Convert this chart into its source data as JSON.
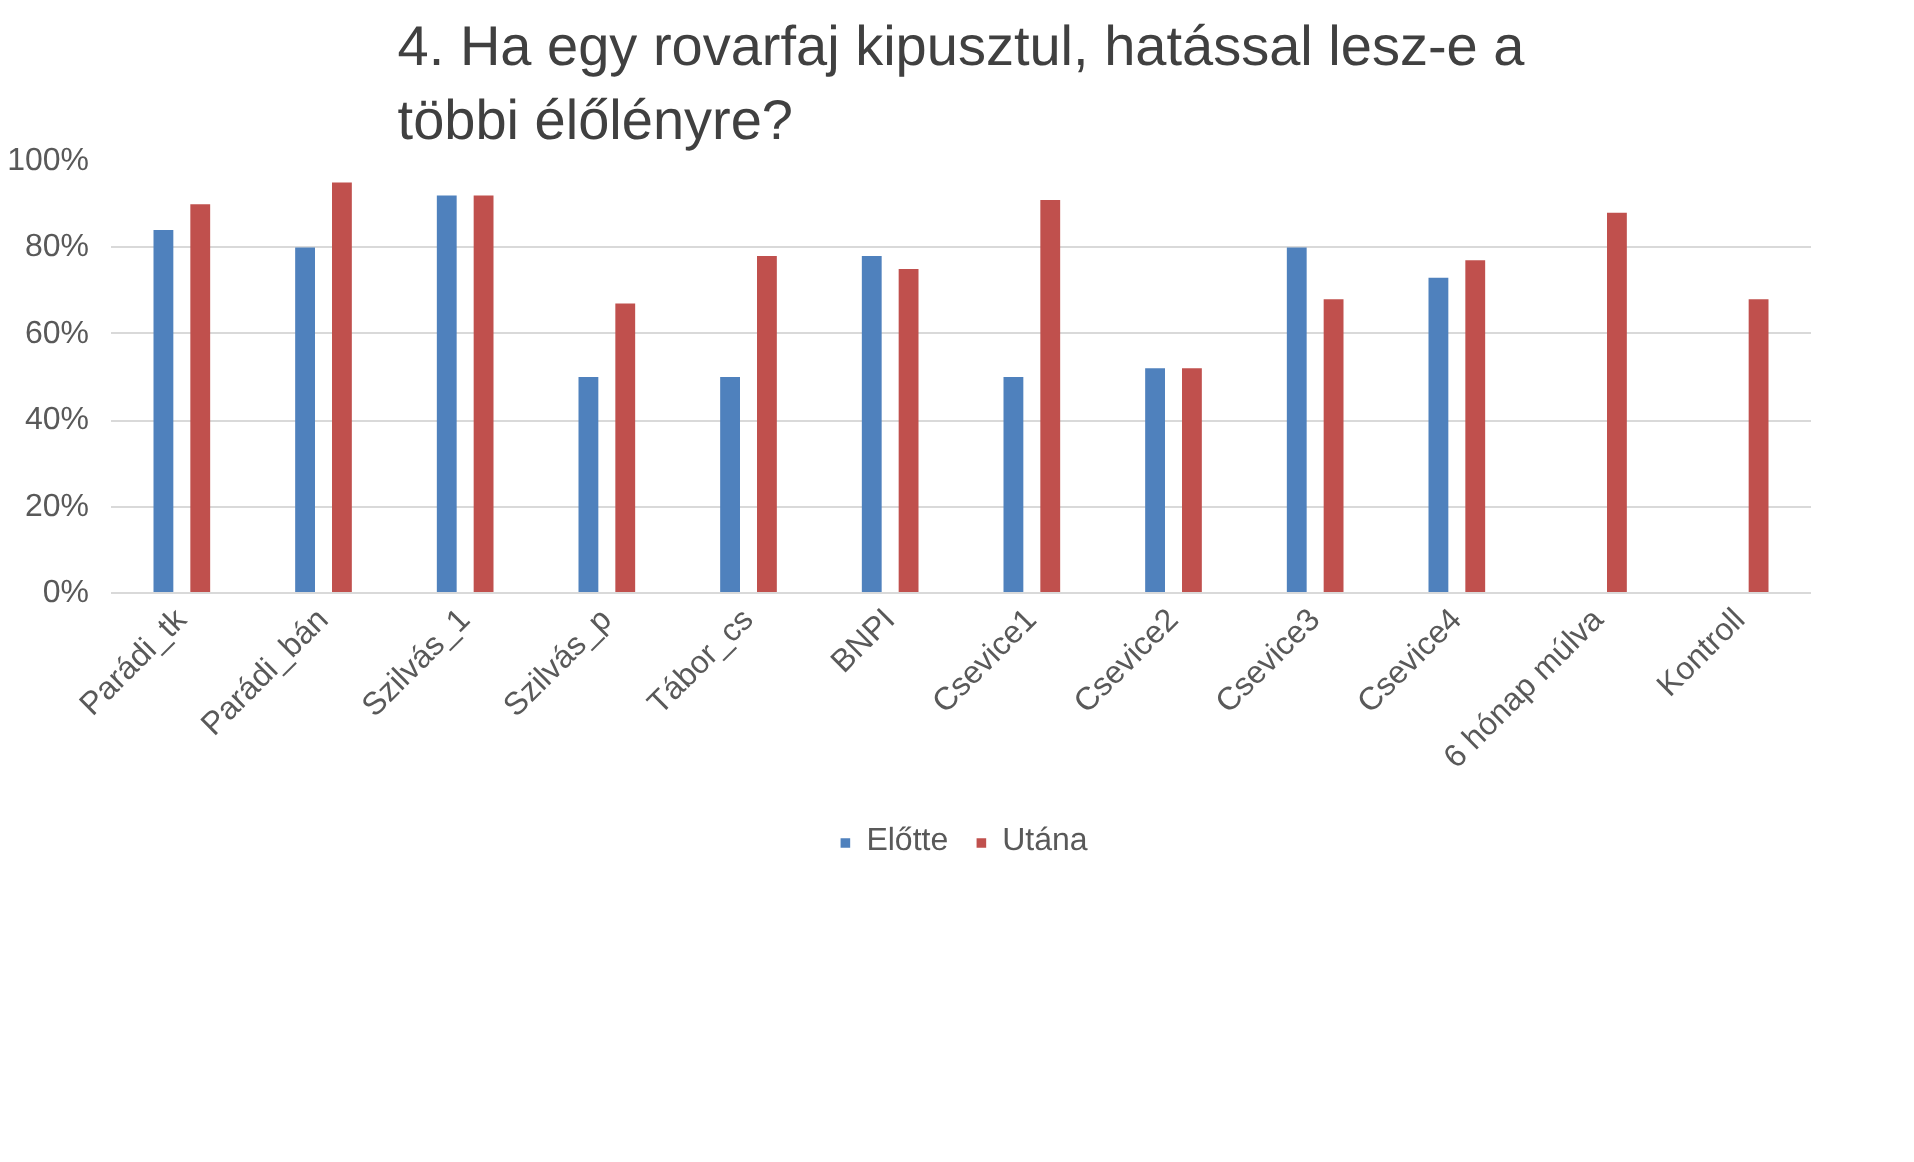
{
  "chart_data": {
    "type": "bar",
    "title": "4. Ha egy rovarfaj kipusztul, hatással lesz-e a\ntöbbi élőlényre?",
    "categories": [
      "Parádi_tk",
      "Parádi_bán",
      "Szilvás_1",
      "Szilvás_p",
      "Tábor_cs",
      "BNPI",
      "Csevice1",
      "Csevice2",
      "Csevice3",
      "Csevice4",
      "6 hónap múlva",
      "Kontroll"
    ],
    "series": [
      {
        "name": "Előtte",
        "color": "#4f81bd",
        "values": [
          84,
          80,
          92,
          50,
          50,
          78,
          50,
          52,
          80,
          73,
          null,
          null
        ]
      },
      {
        "name": "Utána",
        "color": "#c0504d",
        "values": [
          90,
          95,
          92,
          67,
          78,
          75,
          91,
          52,
          68,
          77,
          88,
          68
        ]
      }
    ],
    "ylim": [
      0,
      100
    ],
    "yticks": [
      {
        "value": 0,
        "label": "0%"
      },
      {
        "value": 20,
        "label": "20%"
      },
      {
        "value": 40,
        "label": "40%"
      },
      {
        "value": 60,
        "label": "60%"
      },
      {
        "value": 80,
        "label": "80%"
      },
      {
        "value": 100,
        "label": "100%"
      }
    ],
    "grid": "y",
    "legend": "bottom"
  }
}
